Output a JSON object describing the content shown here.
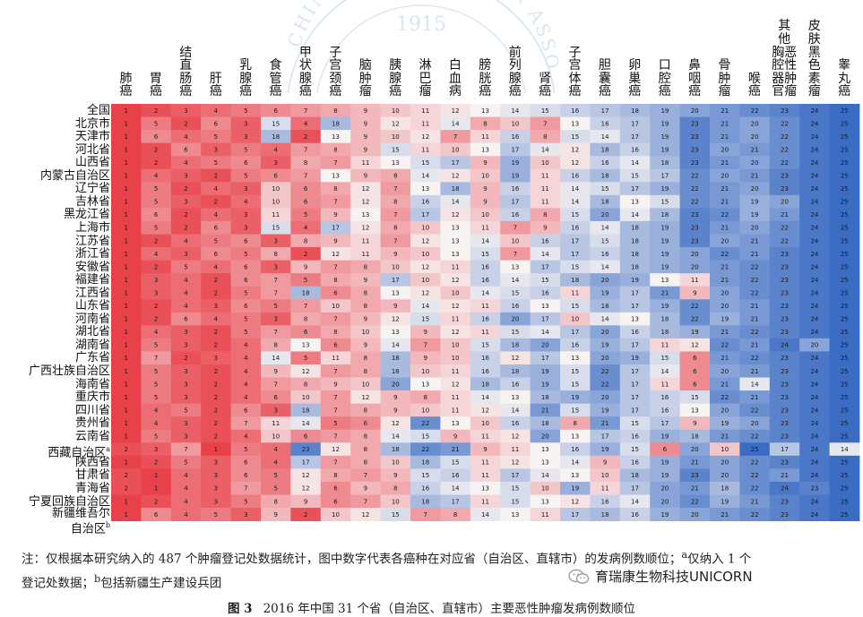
{
  "chart_data": {
    "type": "heatmap",
    "columns": [
      "肺癌",
      "胃癌",
      "结直肠癌",
      "肝癌",
      "乳腺癌",
      "食管癌",
      "甲状腺癌",
      "子宫颈癌",
      "脑肿瘤",
      "胰腺癌",
      "淋巴瘤",
      "白血病",
      "膀胱癌",
      "前列腺癌",
      "肾癌",
      "子宫体癌",
      "胆囊癌",
      "卵巢癌",
      "口腔癌",
      "鼻咽癌",
      "骨肿瘤",
      "喉癌",
      "其他胸腔器官恶性肿瘤",
      "皮肤黑色素瘤",
      "睾丸癌"
    ],
    "column_headers": [
      "肺\n癌",
      "胃\n癌",
      "结\n直\n肠\n癌",
      "肝\n癌",
      "乳\n腺\n癌",
      "食\n管\n癌",
      "甲\n状\n腺\n癌",
      "子\n宫\n颈\n癌",
      "脑\n肿\n瘤",
      "胰\n腺\n癌",
      "淋\n巴\n瘤",
      "白\n血\n病",
      "膀\n胱\n癌",
      "前\n列\n腺\n癌",
      "肾\n癌",
      "子\n宫\n体\n癌",
      "胆\n囊\n癌",
      "卵\n巢\n癌",
      "口\n腔\n癌",
      "鼻\n咽\n癌",
      "骨\n肿\n瘤",
      "喉\n癌",
      "其\n他\n胸恶\n腔性\n器肿\n官瘤",
      "皮\n肤\n黑\n色\n素\n瘤",
      "睾\n丸\n癌"
    ],
    "rows": [
      {
        "label": "全国",
        "values": [
          1,
          2,
          3,
          4,
          5,
          6,
          7,
          8,
          9,
          10,
          11,
          12,
          13,
          14,
          15,
          16,
          17,
          18,
          19,
          20,
          21,
          22,
          23,
          24,
          25
        ]
      },
      {
        "label": "北京市",
        "values": [
          1,
          5,
          2,
          6,
          3,
          15,
          4,
          18,
          9,
          12,
          11,
          14,
          8,
          10,
          7,
          13,
          16,
          17,
          19,
          23,
          21,
          20,
          22,
          24,
          25
        ]
      },
      {
        "label": "天津市",
        "values": [
          1,
          6,
          4,
          5,
          3,
          18,
          2,
          13,
          9,
          10,
          12,
          7,
          11,
          16,
          8,
          15,
          14,
          17,
          19,
          23,
          21,
          20,
          22,
          24,
          25
        ]
      },
      {
        "label": "河北省",
        "values": [
          1,
          2,
          6,
          3,
          5,
          4,
          7,
          8,
          9,
          15,
          11,
          10,
          13,
          17,
          14,
          12,
          18,
          16,
          19,
          23,
          20,
          21,
          22,
          24,
          25
        ]
      },
      {
        "label": "山西省",
        "values": [
          1,
          2,
          4,
          5,
          6,
          3,
          8,
          7,
          11,
          13,
          15,
          17,
          9,
          19,
          10,
          12,
          16,
          14,
          18,
          23,
          21,
          20,
          22,
          24,
          25
        ]
      },
      {
        "label": "内蒙古自治区",
        "values": [
          1,
          4,
          3,
          2,
          5,
          6,
          7,
          13,
          9,
          8,
          14,
          12,
          10,
          19,
          11,
          16,
          18,
          15,
          17,
          22,
          20,
          21,
          23,
          24,
          25
        ]
      },
      {
        "label": "辽宁省",
        "values": [
          1,
          5,
          2,
          4,
          3,
          10,
          6,
          8,
          12,
          7,
          13,
          18,
          9,
          16,
          11,
          14,
          15,
          17,
          19,
          22,
          21,
          20,
          23,
          24,
          25
        ]
      },
      {
        "label": "吉林省",
        "values": [
          1,
          5,
          3,
          2,
          4,
          10,
          6,
          7,
          12,
          8,
          16,
          14,
          9,
          17,
          11,
          14,
          18,
          13,
          15,
          22,
          21,
          19,
          20,
          24,
          25
        ]
      },
      {
        "label": "黑龙江省",
        "values": [
          1,
          6,
          2,
          4,
          3,
          11,
          5,
          9,
          13,
          7,
          17,
          12,
          10,
          16,
          8,
          15,
          20,
          14,
          18,
          23,
          22,
          19,
          21,
          24,
          25
        ]
      },
      {
        "label": "上海市",
        "values": [
          1,
          5,
          2,
          6,
          3,
          15,
          4,
          17,
          12,
          8,
          10,
          13,
          11,
          7,
          9,
          16,
          14,
          18,
          19,
          23,
          21,
          20,
          22,
          24,
          25
        ]
      },
      {
        "label": "江苏省",
        "values": [
          1,
          2,
          4,
          5,
          6,
          3,
          8,
          9,
          11,
          7,
          12,
          13,
          14,
          10,
          16,
          17,
          15,
          18,
          19,
          23,
          20,
          21,
          22,
          24,
          25
        ]
      },
      {
        "label": "浙江省",
        "values": [
          1,
          4,
          3,
          6,
          5,
          8,
          2,
          12,
          11,
          9,
          10,
          13,
          15,
          7,
          14,
          17,
          16,
          18,
          19,
          20,
          22,
          21,
          23,
          24,
          25
        ]
      },
      {
        "label": "安徽省",
        "values": [
          1,
          2,
          5,
          4,
          6,
          3,
          9,
          7,
          8,
          10,
          12,
          11,
          16,
          13,
          17,
          15,
          14,
          18,
          19,
          20,
          21,
          22,
          23,
          24,
          25
        ]
      },
      {
        "label": "福建省",
        "values": [
          1,
          3,
          4,
          2,
          6,
          7,
          5,
          8,
          9,
          17,
          10,
          12,
          16,
          14,
          15,
          18,
          20,
          19,
          13,
          11,
          21,
          22,
          23,
          24,
          25
        ]
      },
      {
        "label": "江西省",
        "values": [
          1,
          3,
          4,
          2,
          5,
          7,
          18,
          6,
          8,
          13,
          12,
          10,
          14,
          15,
          16,
          11,
          19,
          17,
          21,
          9,
          20,
          22,
          23,
          24,
          25
        ]
      },
      {
        "label": "山东省",
        "values": [
          1,
          2,
          4,
          3,
          6,
          5,
          7,
          10,
          8,
          9,
          14,
          12,
          11,
          16,
          13,
          15,
          18,
          17,
          19,
          22,
          20,
          21,
          23,
          24,
          25
        ]
      },
      {
        "label": "河南省",
        "values": [
          1,
          2,
          6,
          4,
          5,
          3,
          8,
          7,
          9,
          12,
          15,
          11,
          16,
          20,
          17,
          10,
          14,
          13,
          18,
          22,
          19,
          21,
          23,
          24,
          25
        ]
      },
      {
        "label": "湖北省",
        "values": [
          1,
          4,
          3,
          2,
          5,
          7,
          6,
          8,
          10,
          13,
          9,
          12,
          11,
          15,
          14,
          17,
          20,
          16,
          18,
          19,
          21,
          22,
          23,
          24,
          25
        ]
      },
      {
        "label": "湖南省",
        "values": [
          1,
          5,
          3,
          2,
          4,
          8,
          13,
          6,
          9,
          14,
          7,
          10,
          15,
          18,
          20,
          16,
          19,
          17,
          11,
          12,
          22,
          21,
          24,
          20,
          25
        ]
      },
      {
        "label": "广东省",
        "values": [
          1,
          7,
          2,
          3,
          4,
          14,
          5,
          11,
          8,
          18,
          9,
          10,
          16,
          12,
          17,
          13,
          20,
          19,
          15,
          6,
          21,
          22,
          23,
          24,
          25
        ]
      },
      {
        "label": "广西壮族自治区",
        "values": [
          1,
          5,
          3,
          2,
          4,
          9,
          12,
          7,
          8,
          18,
          10,
          11,
          16,
          18,
          19,
          15,
          22,
          17,
          14,
          6,
          20,
          21,
          23,
          24,
          25
        ]
      },
      {
        "label": "海南省",
        "values": [
          1,
          5,
          3,
          2,
          4,
          7,
          8,
          9,
          10,
          20,
          13,
          12,
          18,
          16,
          19,
          15,
          22,
          17,
          11,
          6,
          21,
          14,
          23,
          24,
          25
        ]
      },
      {
        "label": "重庆市",
        "values": [
          1,
          5,
          3,
          2,
          4,
          6,
          10,
          7,
          12,
          9,
          8,
          11,
          14,
          13,
          18,
          19,
          20,
          17,
          16,
          15,
          22,
          21,
          23,
          24,
          25
        ]
      },
      {
        "label": "四川省",
        "values": [
          1,
          4,
          5,
          2,
          6,
          3,
          18,
          7,
          8,
          9,
          10,
          11,
          12,
          14,
          21,
          15,
          19,
          17,
          16,
          13,
          20,
          22,
          23,
          24,
          25
        ]
      },
      {
        "label": "贵州省",
        "values": [
          1,
          4,
          3,
          2,
          7,
          11,
          14,
          5,
          6,
          12,
          22,
          13,
          10,
          16,
          18,
          8,
          21,
          15,
          17,
          9,
          19,
          20,
          23,
          24,
          25
        ]
      },
      {
        "label": "云南省",
        "values": [
          1,
          5,
          3,
          2,
          4,
          10,
          6,
          7,
          8,
          14,
          15,
          9,
          11,
          12,
          20,
          13,
          17,
          16,
          19,
          18,
          21,
          22,
          23,
          24,
          25
        ]
      },
      {
        "label": "西藏自治区",
        "values": [
          2,
          3,
          7,
          1,
          5,
          4,
          23,
          12,
          8,
          18,
          22,
          21,
          9,
          11,
          13,
          16,
          19,
          15,
          6,
          20,
          10,
          25,
          17,
          24,
          14
        ]
      },
      {
        "label": "陕西省",
        "values": [
          1,
          2,
          5,
          3,
          6,
          4,
          17,
          7,
          8,
          10,
          18,
          15,
          11,
          12,
          13,
          14,
          9,
          16,
          19,
          21,
          20,
          22,
          23,
          24,
          25
        ]
      },
      {
        "label": "甘肃省",
        "values": [
          2,
          1,
          4,
          3,
          6,
          5,
          12,
          8,
          7,
          9,
          15,
          16,
          11,
          17,
          14,
          13,
          10,
          18,
          19,
          23,
          20,
          22,
          21,
          24,
          25
        ]
      },
      {
        "label": "青海省",
        "values": [
          2,
          1,
          4,
          3,
          7,
          5,
          12,
          6,
          9,
          8,
          16,
          14,
          13,
          15,
          10,
          19,
          11,
          17,
          20,
          21,
          18,
          22,
          24,
          23,
          25
        ]
      },
      {
        "label": "宁夏回族自治区",
        "values": [
          1,
          2,
          4,
          3,
          5,
          8,
          9,
          6,
          7,
          10,
          18,
          17,
          11,
          15,
          13,
          12,
          16,
          14,
          20,
          22,
          19,
          21,
          23,
          24,
          25
        ]
      },
      {
        "label": "新疆维吾尔自治区",
        "values": [
          1,
          6,
          4,
          5,
          3,
          9,
          2,
          10,
          12,
          15,
          7,
          8,
          14,
          13,
          11,
          17,
          18,
          16,
          19,
          20,
          21,
          22,
          23,
          24,
          25
        ]
      }
    ],
    "row_label_marks": {
      "西藏自治区": "a",
      "新疆维吾尔自治区": "b"
    },
    "value_range": [
      1,
      25
    ],
    "color_scale": {
      "low": "#e8414a",
      "mid": "#f7f3f3",
      "high": "#3a6cc4"
    }
  },
  "note": {
    "line1_before_a": "注：仅根据本研究纳入的 487 个肿瘤登记处数据统计，图中数字代表各癌种在对应省（自治区、直辖市）的发病例数顺位；",
    "mark_a": "a",
    "line1_after_a": "仅纳入 1 个",
    "line2_before_b": "登记处数据；",
    "mark_b": "b",
    "line2_after_b": "包括新疆生产建设兵团"
  },
  "caption": {
    "figure_no": "图 3",
    "title": "2016 年中国 31 个省（自治区、直辖市）主要恶性肿瘤发病例数顺位"
  },
  "watermark": {
    "text": "CHINESE ANTI-CANCER ASSOCIATION",
    "year": "1915"
  },
  "brand": {
    "text": "育瑞康生物科技UNICORN",
    "icon": "wechat-icon",
    "icon_color": "#9aa0a6"
  }
}
